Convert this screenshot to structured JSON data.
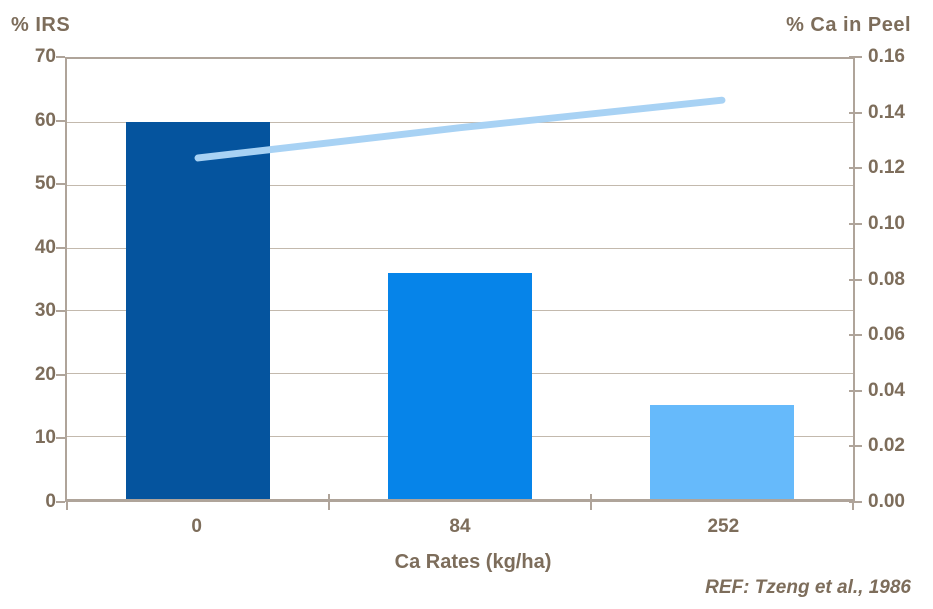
{
  "chart": {
    "left_axis_title": "% IRS",
    "right_axis_title": "% Ca in Peel",
    "x_axis_title": "Ca Rates (kg/ha)",
    "reference": "REF: Tzeng et al., 1986"
  },
  "chart_data": {
    "type": "bar",
    "title": "",
    "categories": [
      "0",
      "84",
      "252"
    ],
    "series": [
      {
        "name": "% IRS",
        "type": "bar",
        "axis": "left",
        "values": [
          60,
          36,
          15
        ],
        "colors": [
          "#05549E",
          "#0684E9",
          "#66BAFB"
        ]
      },
      {
        "name": "% Ca in Peel",
        "type": "line",
        "axis": "right",
        "values": [
          0.124,
          0.135,
          0.145
        ],
        "color": "#A8D2F4",
        "stroke_width": 7
      }
    ],
    "xlabel": "Ca Rates (kg/ha)",
    "left_axis": {
      "title": "% IRS",
      "min": 0,
      "max": 70,
      "step": 10,
      "ticks": [
        "0",
        "10",
        "20",
        "30",
        "40",
        "50",
        "60",
        "70"
      ]
    },
    "right_axis": {
      "title": "% Ca in Peel",
      "min": 0,
      "max": 0.16,
      "step": 0.02,
      "ticks": [
        "0.00",
        "0.02",
        "0.04",
        "0.06",
        "0.08",
        "0.10",
        "0.12",
        "0.14",
        "0.16"
      ]
    },
    "grid": "horizontal, left-axis intervals",
    "legend": "none",
    "annotation": "REF: Tzeng et al., 1986",
    "colors": {
      "axis": "#AFA49A",
      "gridline": "#C3B9AD",
      "text": "#7D6D5B",
      "background": "#FFFFFF"
    }
  }
}
